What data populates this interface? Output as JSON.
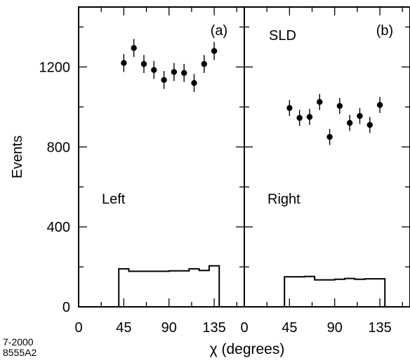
{
  "chart_data": [
    {
      "panel": "(a)",
      "type": "scatter",
      "side_label": "Left",
      "ylabel": "Events",
      "xlabel": "",
      "xlim": [
        0,
        165
      ],
      "ylim": [
        0,
        1500
      ],
      "xticks": [
        0,
        45,
        90,
        135
      ],
      "yticks": [
        0,
        400,
        800,
        1200
      ],
      "points": [
        {
          "x": 45,
          "y": 1220,
          "err": 45
        },
        {
          "x": 55,
          "y": 1295,
          "err": 45
        },
        {
          "x": 65,
          "y": 1215,
          "err": 45
        },
        {
          "x": 75,
          "y": 1185,
          "err": 45
        },
        {
          "x": 85,
          "y": 1135,
          "err": 45
        },
        {
          "x": 95,
          "y": 1175,
          "err": 45
        },
        {
          "x": 105,
          "y": 1170,
          "err": 45
        },
        {
          "x": 115,
          "y": 1120,
          "err": 45
        },
        {
          "x": 125,
          "y": 1215,
          "err": 45
        },
        {
          "x": 135,
          "y": 1280,
          "err": 45
        }
      ],
      "histogram": {
        "edges": [
          40,
          50,
          60,
          70,
          80,
          90,
          100,
          110,
          120,
          130,
          140
        ],
        "values": [
          190,
          178,
          178,
          178,
          178,
          180,
          180,
          190,
          182,
          205
        ]
      }
    },
    {
      "panel": "(b)",
      "type": "scatter",
      "experiment_label": "SLD",
      "side_label": "Right",
      "ylabel": "",
      "xlabel": "",
      "xlim": [
        0,
        165
      ],
      "ylim": [
        0,
        1500
      ],
      "xticks": [
        0,
        45,
        90,
        135
      ],
      "yticks": [
        0,
        400,
        800,
        1200
      ],
      "points": [
        {
          "x": 45,
          "y": 995,
          "err": 40
        },
        {
          "x": 55,
          "y": 945,
          "err": 40
        },
        {
          "x": 65,
          "y": 950,
          "err": 40
        },
        {
          "x": 75,
          "y": 1025,
          "err": 40
        },
        {
          "x": 85,
          "y": 850,
          "err": 40
        },
        {
          "x": 95,
          "y": 1005,
          "err": 40
        },
        {
          "x": 105,
          "y": 920,
          "err": 40
        },
        {
          "x": 115,
          "y": 955,
          "err": 40
        },
        {
          "x": 125,
          "y": 910,
          "err": 40
        },
        {
          "x": 135,
          "y": 1010,
          "err": 40
        }
      ],
      "histogram": {
        "edges": [
          40,
          50,
          60,
          70,
          80,
          90,
          100,
          110,
          120,
          130,
          140
        ],
        "values": [
          150,
          150,
          152,
          135,
          135,
          138,
          142,
          138,
          140,
          140
        ]
      }
    }
  ],
  "shared_xlabel": "χ  (degrees)",
  "figure_code_date": "7-2000",
  "figure_code_id": "8555A2",
  "colors": {
    "ink": "#000000",
    "background": "#ffffff"
  }
}
